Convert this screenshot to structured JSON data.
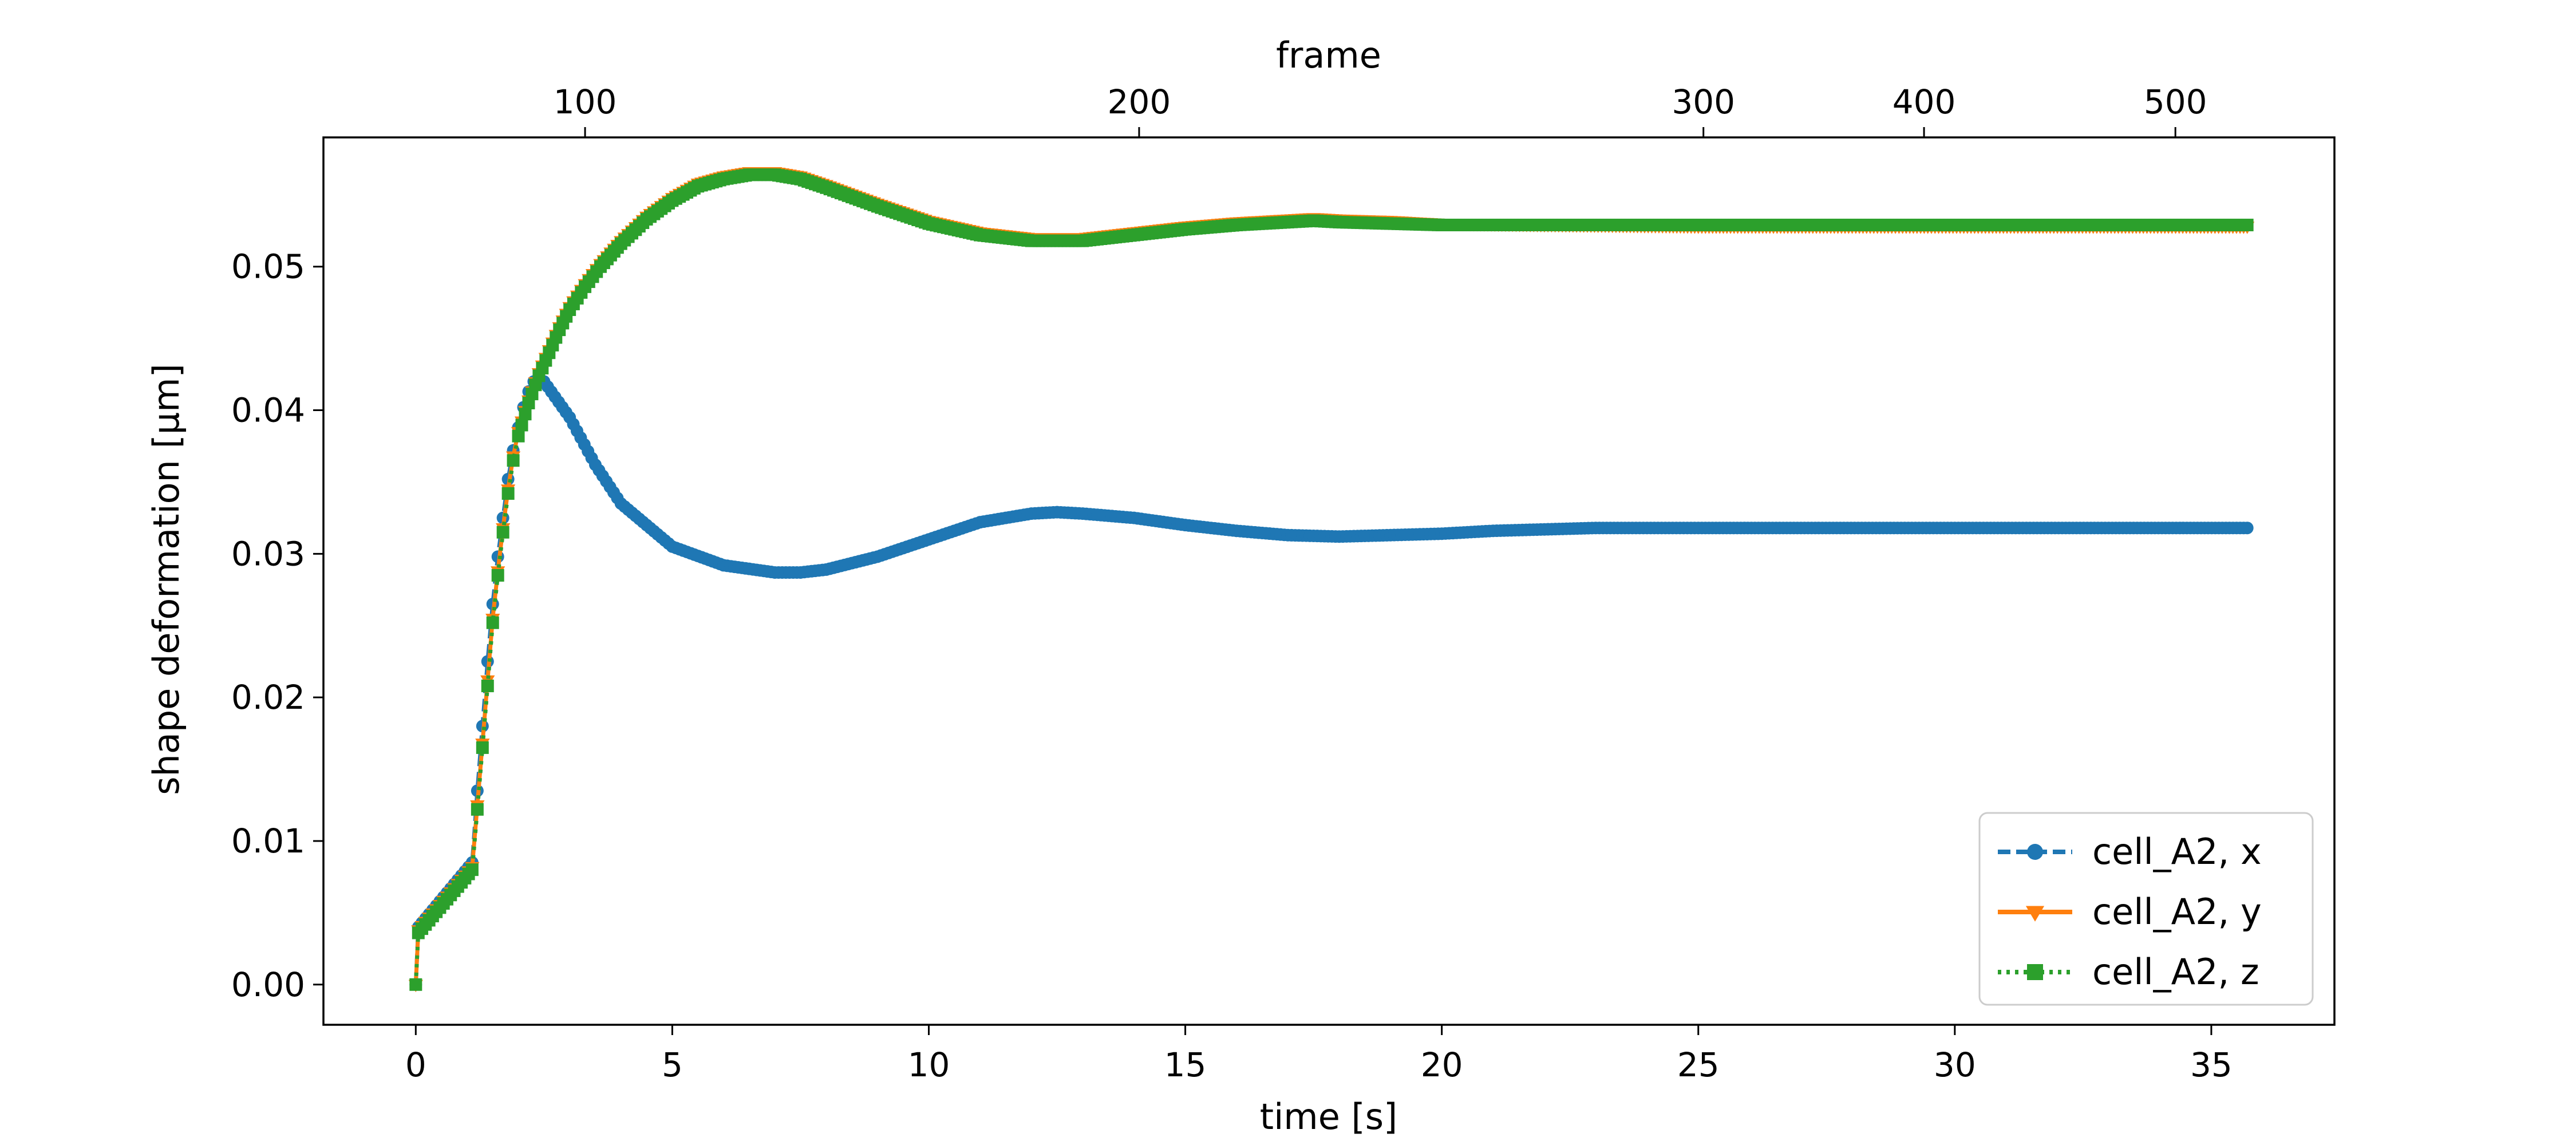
{
  "chart_data": {
    "type": "line",
    "xlabel": "time [s]",
    "ylabel": "shape deformation [μm]",
    "top_xlabel": "frame",
    "xlim": [
      -1.8,
      37.4
    ],
    "ylim": [
      -0.0028,
      0.059
    ],
    "x_ticks": [
      0,
      5,
      10,
      15,
      20,
      25,
      30,
      35
    ],
    "x_tick_labels": [
      "0",
      "5",
      "10",
      "15",
      "20",
      "25",
      "30",
      "35"
    ],
    "y_ticks": [
      0.0,
      0.01,
      0.02,
      0.03,
      0.04,
      0.05
    ],
    "y_tick_labels": [
      "0.00",
      "0.01",
      "0.02",
      "0.03",
      "0.04",
      "0.05"
    ],
    "top_ticks_time": [
      3.3,
      14.1,
      25.1,
      29.4,
      34.3
    ],
    "top_tick_labels": [
      "100",
      "200",
      "300",
      "400",
      "500"
    ],
    "grid": false,
    "legend_position": "bottom-right",
    "series": [
      {
        "name": "cell_A2, x",
        "color": "#1f77b4",
        "linestyle": "dashed",
        "marker": "circle",
        "x": [
          0,
          0.05,
          1.1,
          1.2,
          1.3,
          1.4,
          1.5,
          1.6,
          1.7,
          1.8,
          1.9,
          2.0,
          2.1,
          2.2,
          2.3,
          2.5,
          3,
          3.5,
          4,
          5,
          6,
          7,
          7.5,
          8,
          9,
          10,
          11,
          12,
          12.5,
          13,
          14,
          15,
          16,
          17,
          18,
          19,
          20,
          21,
          22,
          23,
          24,
          25,
          27,
          30,
          33,
          35.7
        ],
        "y": [
          0.0,
          0.004,
          0.0085,
          0.0135,
          0.018,
          0.0225,
          0.0265,
          0.0298,
          0.0325,
          0.0352,
          0.0372,
          0.0388,
          0.0402,
          0.0413,
          0.042,
          0.042,
          0.0395,
          0.0362,
          0.0335,
          0.0305,
          0.0292,
          0.0287,
          0.0287,
          0.0289,
          0.0298,
          0.031,
          0.0322,
          0.0328,
          0.0329,
          0.0328,
          0.0325,
          0.032,
          0.0316,
          0.0313,
          0.0312,
          0.0313,
          0.0314,
          0.0316,
          0.0317,
          0.0318,
          0.0318,
          0.0318,
          0.0318,
          0.0318,
          0.0318,
          0.0318
        ]
      },
      {
        "name": "cell_A2, y",
        "color": "#ff7f0e",
        "linestyle": "solid",
        "marker": "triangle_down",
        "x": [
          0,
          0.05,
          1.1,
          1.2,
          1.3,
          1.4,
          1.5,
          1.6,
          1.7,
          1.8,
          1.9,
          2.0,
          2.2,
          2.4,
          2.6,
          2.8,
          3.0,
          3.3,
          3.6,
          4.0,
          4.5,
          5.0,
          5.5,
          6.0,
          6.5,
          7.0,
          7.5,
          8.0,
          9.0,
          10.0,
          11.0,
          12.0,
          13.0,
          14.0,
          15.0,
          16.0,
          17.0,
          17.5,
          18.0,
          19.0,
          20.0,
          22.0,
          25.0,
          28.0,
          32.0,
          35.7
        ],
        "y": [
          0.0,
          0.0038,
          0.0082,
          0.0125,
          0.0168,
          0.0212,
          0.0255,
          0.0288,
          0.0318,
          0.0345,
          0.0368,
          0.0385,
          0.0407,
          0.0426,
          0.0442,
          0.0458,
          0.0472,
          0.0488,
          0.0502,
          0.0518,
          0.0535,
          0.0548,
          0.0558,
          0.0563,
          0.0566,
          0.0566,
          0.0563,
          0.0557,
          0.0544,
          0.0532,
          0.0524,
          0.052,
          0.052,
          0.0524,
          0.0528,
          0.0531,
          0.0533,
          0.0534,
          0.0533,
          0.0532,
          0.053,
          0.0529,
          0.0528,
          0.0528,
          0.0528,
          0.0528
        ]
      },
      {
        "name": "cell_A2, z",
        "color": "#2ca02c",
        "linestyle": "dotted",
        "marker": "square",
        "x": [
          0,
          0.05,
          1.1,
          1.2,
          1.3,
          1.4,
          1.5,
          1.6,
          1.7,
          1.8,
          1.9,
          2.0,
          2.2,
          2.4,
          2.6,
          2.8,
          3.0,
          3.3,
          3.6,
          4.0,
          4.5,
          5.0,
          5.5,
          6.0,
          6.5,
          7.0,
          7.5,
          8.0,
          9.0,
          10.0,
          11.0,
          12.0,
          13.0,
          14.0,
          15.0,
          16.0,
          17.0,
          17.5,
          18.0,
          19.0,
          20.0,
          22.0,
          25.0,
          28.0,
          32.0,
          35.7
        ],
        "y": [
          0.0,
          0.0036,
          0.008,
          0.0122,
          0.0165,
          0.0208,
          0.0252,
          0.0285,
          0.0315,
          0.0342,
          0.0365,
          0.0382,
          0.0405,
          0.0424,
          0.044,
          0.0456,
          0.047,
          0.0486,
          0.05,
          0.0516,
          0.0533,
          0.0546,
          0.0556,
          0.0561,
          0.0564,
          0.0564,
          0.0561,
          0.0555,
          0.0542,
          0.053,
          0.0522,
          0.0518,
          0.0518,
          0.0522,
          0.0526,
          0.0529,
          0.0531,
          0.0532,
          0.0531,
          0.053,
          0.0529,
          0.0529,
          0.0529,
          0.0529,
          0.0529,
          0.0529
        ]
      }
    ]
  }
}
